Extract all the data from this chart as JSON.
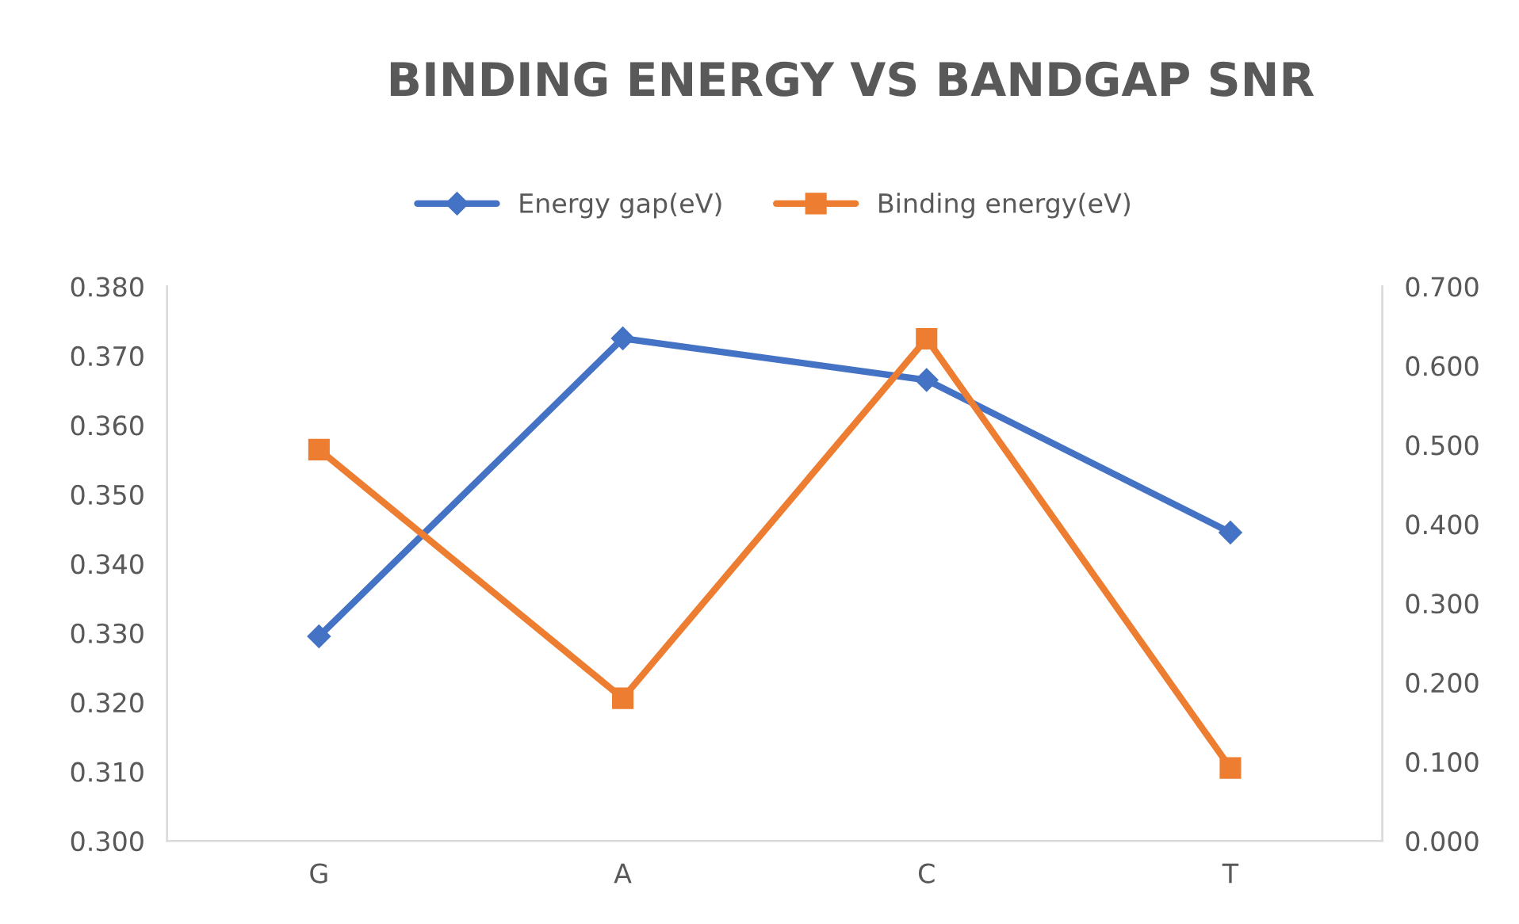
{
  "chart_data": {
    "type": "line",
    "title": "BINDING ENERGY VS BANDGAP SNR",
    "categories": [
      "G",
      "A",
      "C",
      "T"
    ],
    "series": [
      {
        "name": "Energy gap(eV)",
        "color": "#4472c4",
        "values": [
          0.3295,
          0.3725,
          0.3665,
          0.3445
        ],
        "marker": "diamond"
      },
      {
        "name": "Binding energy(eV)",
        "color": "#ed7d31",
        "values": [
          0.494,
          0.18,
          0.634,
          0.092
        ],
        "axis": "y2",
        "marker": "square"
      }
    ],
    "ylim": [
      0.3,
      0.38
    ],
    "yticks": [
      {
        "value": 0.3,
        "label": "0.300"
      },
      {
        "value": 0.31,
        "label": "0.310"
      },
      {
        "value": 0.32,
        "label": "0.320"
      },
      {
        "value": 0.33,
        "label": "0.330"
      },
      {
        "value": 0.34,
        "label": "0.340"
      },
      {
        "value": 0.35,
        "label": "0.350"
      },
      {
        "value": 0.36,
        "label": "0.360"
      },
      {
        "value": 0.37,
        "label": "0.370"
      },
      {
        "value": 0.38,
        "label": "0.380"
      }
    ],
    "y2lim": [
      0,
      0.7
    ],
    "y2ticks": [
      {
        "value": 0,
        "label": "0.000"
      },
      {
        "value": 0.1,
        "label": "0.100"
      },
      {
        "value": 0.2,
        "label": "0.200"
      },
      {
        "value": 0.3,
        "label": "0.300"
      },
      {
        "value": 0.4,
        "label": "0.400"
      },
      {
        "value": 0.5,
        "label": "0.500"
      },
      {
        "value": 0.6,
        "label": "0.600"
      },
      {
        "value": 0.7,
        "label": "0.700"
      }
    ],
    "legend": "top",
    "line_style": "solid",
    "grid": false
  }
}
